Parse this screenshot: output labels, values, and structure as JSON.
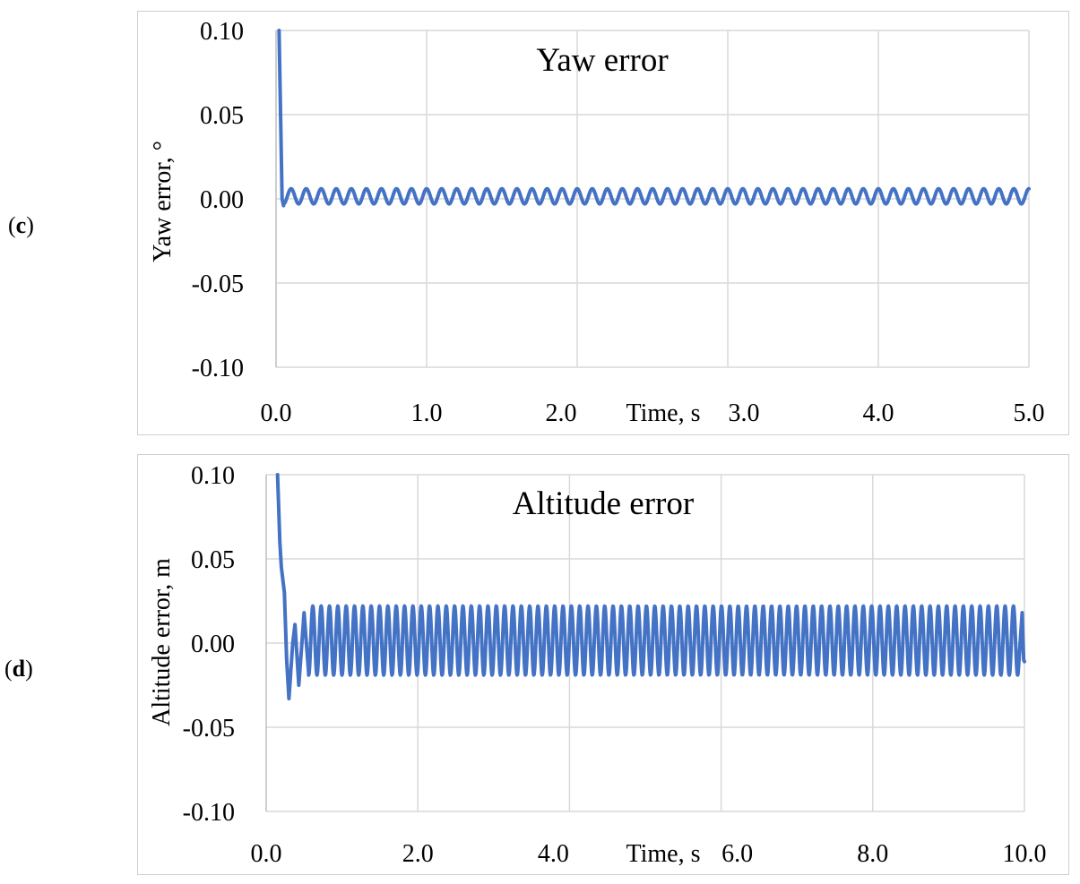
{
  "panels": [
    {
      "label_open": "(",
      "label_letter": "c",
      "label_close": ")"
    },
    {
      "label_open": "(",
      "label_letter": "d",
      "label_close": ")"
    }
  ],
  "chart_data": [
    {
      "type": "line",
      "title": "Yaw error",
      "xlabel": "Time, s",
      "ylabel": "Yaw error, °",
      "xlim": [
        0,
        5
      ],
      "ylim": [
        -0.1,
        0.1
      ],
      "x_ticks": [
        "0.0",
        "1.0",
        "2.0",
        "3.0",
        "4.0",
        "5.0"
      ],
      "y_ticks": [
        "0.10",
        "0.05",
        "0.00",
        "-0.05",
        "-0.10"
      ],
      "grid": true,
      "series": [
        {
          "color": "#4472c4",
          "transient": [
            [
              0.02,
              0.1
            ],
            [
              0.03,
              0.05
            ],
            [
              0.04,
              0.0
            ],
            [
              0.05,
              -0.004
            ]
          ],
          "oscillation": {
            "start": 0.05,
            "end": 5.0,
            "center": 0.0015,
            "amplitude": 0.0045,
            "period": 0.1
          }
        }
      ]
    },
    {
      "type": "line",
      "title": "Altitude error",
      "xlabel": "Time, s",
      "ylabel": "Altitude error, m",
      "xlim": [
        0,
        10
      ],
      "ylim": [
        -0.1,
        0.1
      ],
      "x_ticks": [
        "0.0",
        "2.0",
        "4.0",
        "6.0",
        "8.0",
        "10.0"
      ],
      "y_ticks": [
        "0.10",
        "0.05",
        "0.00",
        "-0.05",
        "-0.10"
      ],
      "grid": true,
      "series": [
        {
          "color": "#4472c4",
          "transient": [
            [
              0.15,
              0.1
            ],
            [
              0.18,
              0.06
            ],
            [
              0.2,
              0.045
            ],
            [
              0.24,
              0.03
            ],
            [
              0.27,
              -0.01
            ],
            [
              0.3,
              -0.033
            ],
            [
              0.35,
              0.0
            ],
            [
              0.38,
              0.011
            ],
            [
              0.43,
              -0.025
            ],
            [
              0.5,
              0.018
            ],
            [
              0.56,
              -0.018
            ]
          ],
          "oscillation": {
            "start": 0.56,
            "end": 9.92,
            "center": 0.0015,
            "amplitude": 0.0205,
            "period": 0.11
          },
          "tail": [
            [
              9.97,
              0.018
            ],
            [
              9.99,
              -0.01
            ],
            [
              10.0,
              -0.011
            ]
          ]
        }
      ]
    }
  ]
}
